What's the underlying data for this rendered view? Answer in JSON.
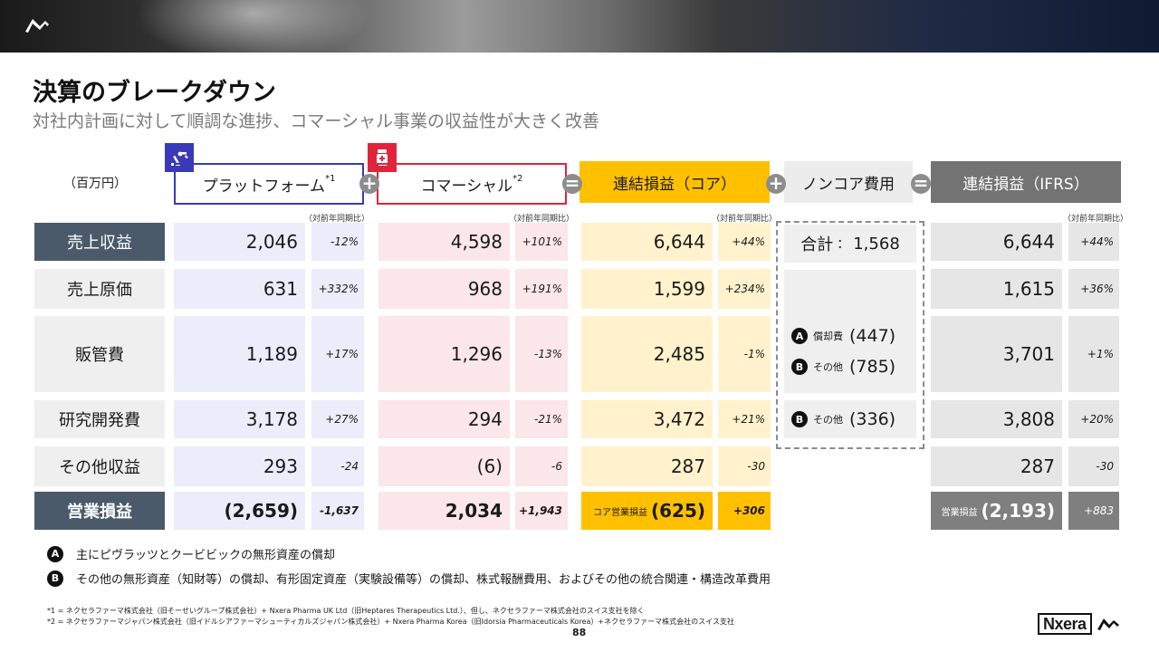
{
  "header": {
    "title": "決算のブレークダウン",
    "subtitle": "対社内計画に対して順調な進捗、コマーシャル事業の収益性が大きく改善"
  },
  "unit_label": "（百万円）",
  "columns": {
    "platform": {
      "label": "プラットフォーム",
      "note": "*1",
      "icon": "robot-arm-icon",
      "color": "#3a3ab8"
    },
    "commercial": {
      "label": "コマーシャル",
      "note": "*2",
      "icon": "medicine-bottle-icon",
      "color": "#e0243c"
    },
    "core": {
      "label": "連結損益（コア）"
    },
    "noncore": {
      "label": "ノンコア費用"
    },
    "ifrs": {
      "label": "連結損益（IFRS）"
    }
  },
  "operators": {
    "plus": "+",
    "equals": "="
  },
  "yoy_label": "（対前年同期比）",
  "rows": [
    {
      "label": "売上収益",
      "platform": "2,046",
      "platform_yoy": "-12%",
      "commercial": "4,598",
      "commercial_yoy": "+101%",
      "core": "6,644",
      "core_yoy": "+44%",
      "ifrs": "6,644",
      "ifrs_yoy": "+44%"
    },
    {
      "label": "売上原価",
      "platform": "631",
      "platform_yoy": "+332%",
      "commercial": "968",
      "commercial_yoy": "+191%",
      "core": "1,599",
      "core_yoy": "+234%",
      "ifrs": "1,615",
      "ifrs_yoy": "+36%"
    },
    {
      "label": "販管費",
      "platform": "1,189",
      "platform_yoy": "+17%",
      "commercial": "1,296",
      "commercial_yoy": "-13%",
      "core": "2,485",
      "core_yoy": "-1%",
      "ifrs": "3,701",
      "ifrs_yoy": "+1%"
    },
    {
      "label": "研究開発費",
      "platform": "3,178",
      "platform_yoy": "+27%",
      "commercial": "294",
      "commercial_yoy": "-21%",
      "core": "3,472",
      "core_yoy": "+21%",
      "ifrs": "3,808",
      "ifrs_yoy": "+20%"
    },
    {
      "label": "その他収益",
      "platform": "293",
      "platform_yoy": "-24",
      "commercial": "(6)",
      "commercial_yoy": "-6",
      "core": "287",
      "core_yoy": "-30",
      "ifrs": "287",
      "ifrs_yoy": "-30"
    },
    {
      "label": "営業損益",
      "platform": "(2,659)",
      "platform_yoy": "-1,637",
      "commercial": "2,034",
      "commercial_yoy": "+1,943",
      "core_prefix": "コア営業損益",
      "core": "(625)",
      "core_yoy": "+306",
      "ifrs_prefix": "営業損益",
      "ifrs": "(2,193)",
      "ifrs_yoy": "+883"
    }
  ],
  "noncore": {
    "total_label": "合計",
    "total_sep": "：",
    "total_value": "1,568",
    "sga_items": [
      {
        "badge": "A",
        "label": "償却費",
        "value": "(447)"
      },
      {
        "badge": "B",
        "label": "その他",
        "value": "(785)"
      }
    ],
    "rd_item": {
      "badge": "B",
      "label": "その他",
      "value": "(336)"
    }
  },
  "notes": [
    {
      "badge": "A",
      "text": "主にピヴラッツとクービビックの無形資産の償却"
    },
    {
      "badge": "B",
      "text": "その他の無形資産（知財等）の償却、有形固定資産（実験設備等）の償却、株式報酬費用、およびその他の統合関連・構造改革費用"
    }
  ],
  "footnotes": [
    "*1 = ネクセラファーマ株式会社（旧そーせいグループ株式会社）+ Nxera Pharma UK Ltd（旧Heptares Therapeutics Ltd.）、但し、ネクセラファーマ株式会社のスイス支社を除く",
    "*2 = ネクセラファーマジャパン株式会社（旧イドルシアファーマシューティカルズジャパン株式会社）+ Nxera Pharma Korea（旧Idorsia Pharmaceuticals Korea）+ネクセラファーマ株式会社のスイス支社"
  ],
  "page_number": "88",
  "brand": "Nxera",
  "colors": {
    "label_bg_dark": "#4a5a6a",
    "label_bg_light": "#efefef",
    "platform_tint": "#ececfa",
    "commercial_tint": "#fbe6ea",
    "core_tint": "#fff2cc",
    "core_highlight": "#ffc000",
    "ifrs_header": "#737373",
    "ifrs_tint": "#e6e6e6",
    "ifrs_highlight": "#7f7f7f"
  }
}
